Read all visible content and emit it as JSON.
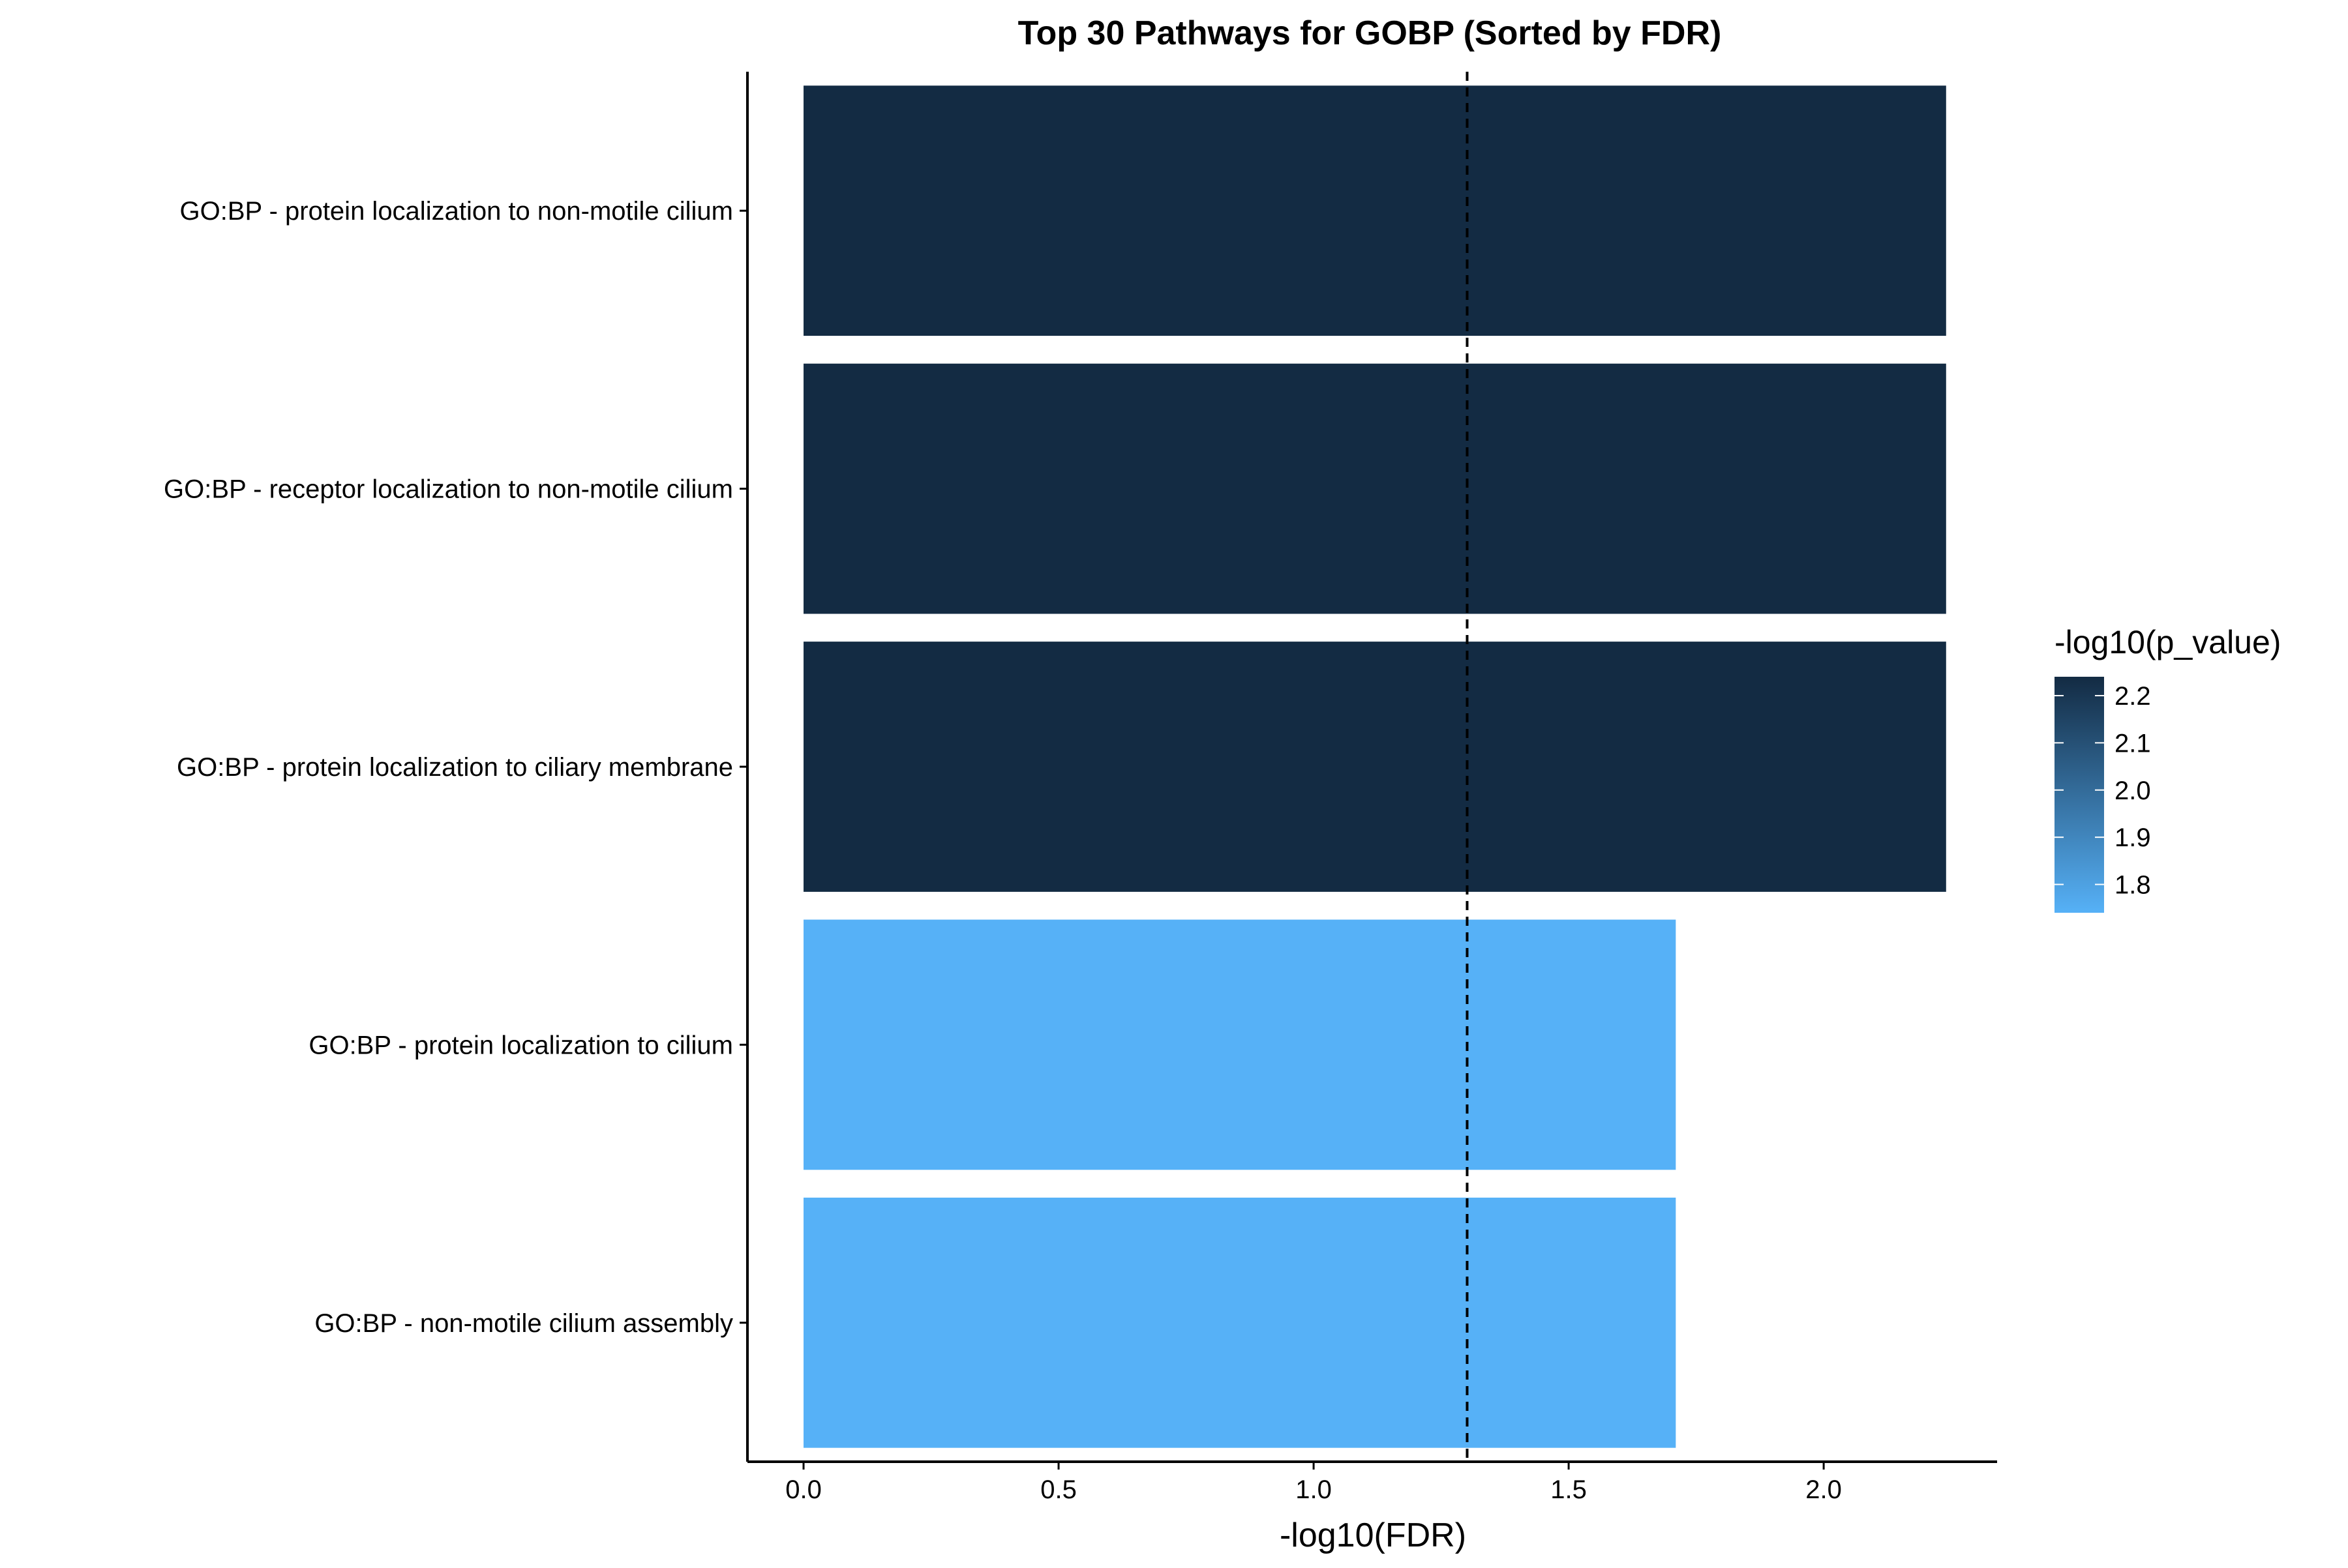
{
  "chart_data": {
    "type": "bar",
    "orientation": "horizontal",
    "title": "Top 30 Pathways for GOBP (Sorted by FDR)",
    "xlabel": "-log10(FDR)",
    "ylabel": "",
    "xlim": [
      -0.11,
      2.34
    ],
    "x_ticks": [
      0.0,
      0.5,
      1.0,
      1.5,
      2.0
    ],
    "x_tick_labels": [
      "0.0",
      "0.5",
      "1.0",
      "1.5",
      "2.0"
    ],
    "threshold_line": 1.301,
    "grid": false,
    "categories": [
      "GO:BP - protein localization to non-motile cilium",
      "GO:BP - receptor localization to non-motile cilium",
      "GO:BP - protein localization to ciliary membrane",
      "GO:BP - protein localization to cilium",
      "GO:BP - non-motile cilium assembly"
    ],
    "values": [
      2.24,
      2.24,
      2.24,
      1.71,
      1.71
    ],
    "color_values": [
      2.24,
      2.24,
      2.24,
      1.74,
      1.74
    ],
    "legend": {
      "title": "-log10(p_value)",
      "placement": "right",
      "ticks": [
        2.2,
        2.1,
        2.0,
        1.9,
        1.8
      ],
      "tick_labels": [
        "2.2",
        "2.1",
        "2.0",
        "1.9",
        "1.8"
      ],
      "range": [
        1.74,
        2.24
      ],
      "color_low": "#56B1F7",
      "color_high": "#132B43"
    }
  }
}
